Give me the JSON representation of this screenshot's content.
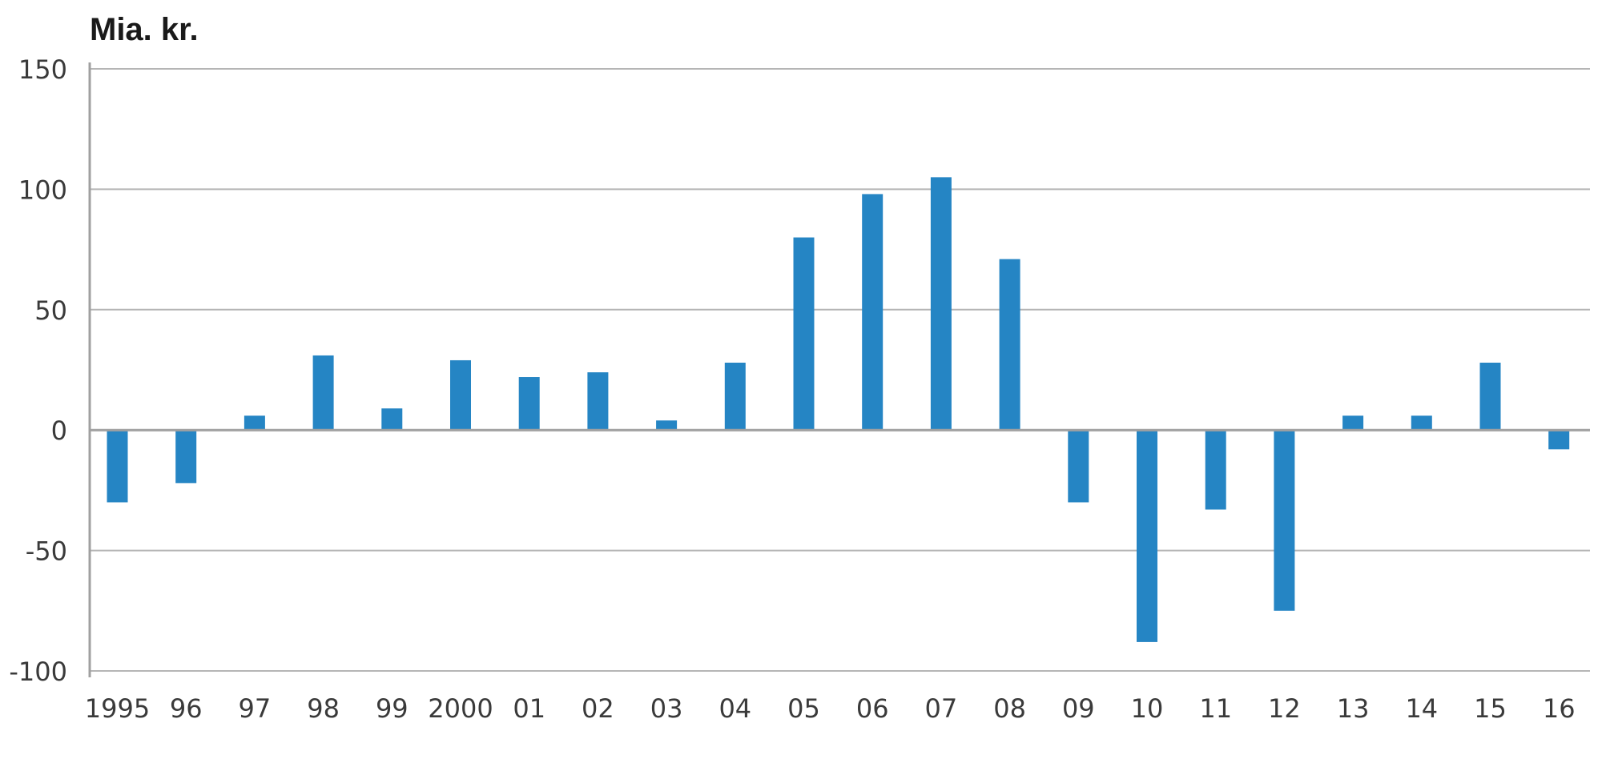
{
  "chart_data": {
    "type": "bar",
    "unit_label": "Mia. kr.",
    "title": "",
    "xlabel": "",
    "ylabel": "",
    "categories": [
      "1995",
      "96",
      "97",
      "98",
      "99",
      "2000",
      "01",
      "02",
      "03",
      "04",
      "05",
      "06",
      "07",
      "08",
      "09",
      "10",
      "11",
      "12",
      "13",
      "14",
      "15",
      "16"
    ],
    "values": [
      -30,
      -22,
      6,
      31,
      9,
      29,
      22,
      24,
      4,
      28,
      80,
      98,
      105,
      71,
      -30,
      -88,
      -33,
      -75,
      6,
      6,
      28,
      -8
    ],
    "ylim": [
      -100,
      150
    ],
    "yticks": [
      150,
      100,
      50,
      0,
      -50,
      -100
    ],
    "grid": true,
    "legend": "none",
    "bar_color": "#2585c4"
  }
}
